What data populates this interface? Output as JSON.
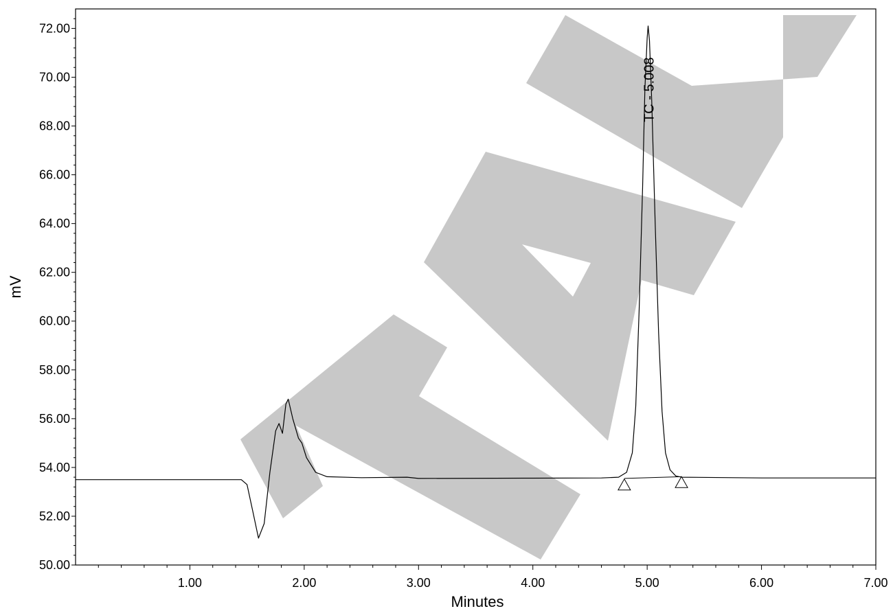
{
  "chart_data": {
    "type": "line",
    "title": "",
    "xlabel": "Minutes",
    "ylabel": "mV",
    "xlim": [
      0,
      7.0
    ],
    "ylim": [
      50.0,
      72.8
    ],
    "x_ticks": [
      "1.00",
      "2.00",
      "3.00",
      "4.00",
      "5.00",
      "6.00",
      "7.00"
    ],
    "y_ticks": [
      "50.00",
      "52.00",
      "54.00",
      "56.00",
      "58.00",
      "60.00",
      "62.00",
      "64.00",
      "66.00",
      "68.00",
      "70.00",
      "72.00"
    ],
    "grid": false,
    "series": [
      {
        "color": "#000000",
        "points": [
          [
            0.0,
            53.5
          ],
          [
            1.45,
            53.5
          ],
          [
            1.5,
            53.3
          ],
          [
            1.55,
            52.2
          ],
          [
            1.6,
            51.1
          ],
          [
            1.65,
            51.7
          ],
          [
            1.7,
            53.8
          ],
          [
            1.75,
            55.5
          ],
          [
            1.78,
            55.8
          ],
          [
            1.81,
            55.4
          ],
          [
            1.84,
            56.6
          ],
          [
            1.86,
            56.8
          ],
          [
            1.9,
            56.0
          ],
          [
            1.95,
            55.2
          ],
          [
            1.98,
            55.0
          ],
          [
            2.02,
            54.4
          ],
          [
            2.1,
            53.8
          ],
          [
            2.2,
            53.62
          ],
          [
            2.5,
            53.58
          ],
          [
            2.9,
            53.6
          ],
          [
            3.0,
            53.55
          ],
          [
            4.0,
            53.56
          ],
          [
            4.6,
            53.57
          ],
          [
            4.75,
            53.6
          ],
          [
            4.82,
            53.8
          ],
          [
            4.87,
            54.6
          ],
          [
            4.9,
            56.5
          ],
          [
            4.93,
            60.5
          ],
          [
            4.96,
            65.5
          ],
          [
            4.98,
            69.5
          ],
          [
            5.0,
            71.6
          ],
          [
            5.008,
            72.1
          ],
          [
            5.02,
            71.5
          ],
          [
            5.04,
            69.0
          ],
          [
            5.07,
            64.0
          ],
          [
            5.1,
            59.5
          ],
          [
            5.13,
            56.3
          ],
          [
            5.16,
            54.6
          ],
          [
            5.2,
            53.9
          ],
          [
            5.25,
            53.65
          ],
          [
            5.3,
            53.6
          ],
          [
            6.0,
            53.57
          ],
          [
            7.0,
            53.57
          ]
        ]
      }
    ],
    "baseline_segment": [
      [
        4.8,
        53.55
      ],
      [
        5.3,
        53.62
      ]
    ],
    "peak_markers": [
      {
        "x": 4.8,
        "y": 53.3
      },
      {
        "x": 5.3,
        "y": 53.4
      }
    ],
    "annotations": [
      {
        "text": "TC - 5.008",
        "x": 5.008,
        "y": 72.0
      }
    ],
    "watermark": "ITAN"
  }
}
